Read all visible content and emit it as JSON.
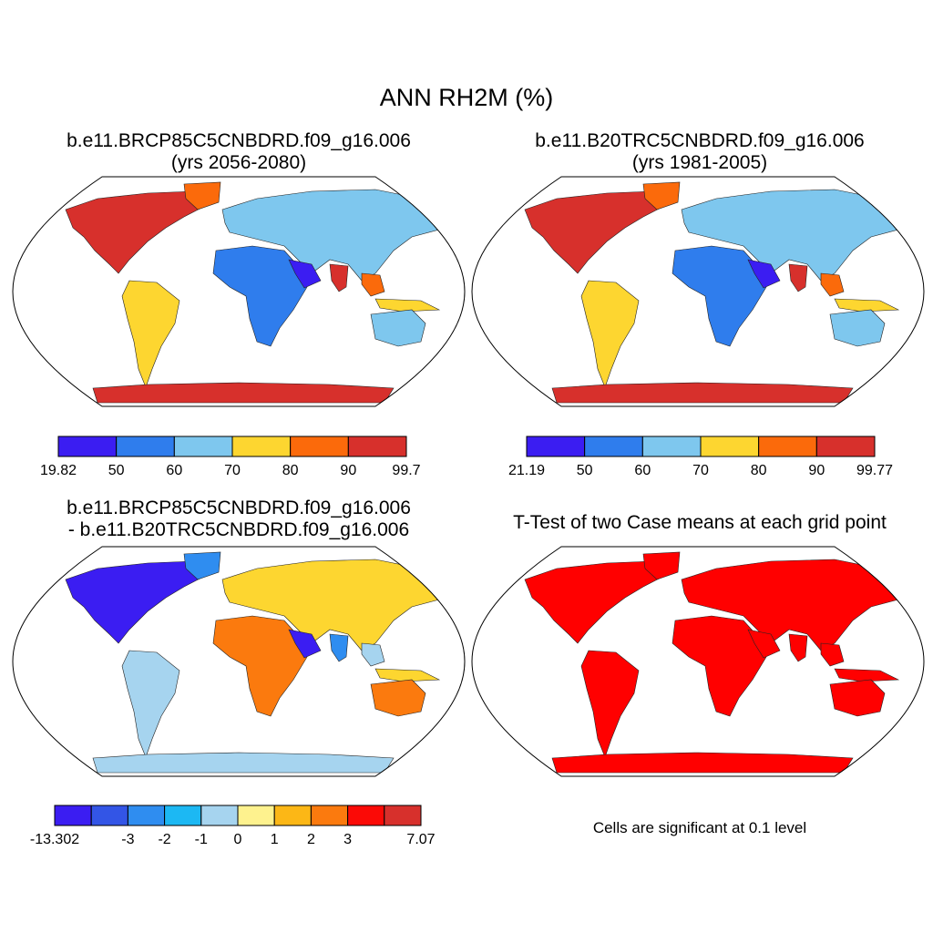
{
  "title": "ANN RH2M (%)",
  "panels": [
    {
      "id": "p1",
      "title_line1": "b.e11.BRCP85C5CNBDRD.f09_g16.006",
      "title_line2": "(yrs 2056-2080)",
      "colorbar": {
        "colors": [
          "#3b1df2",
          "#2f7ded",
          "#7ec7ee",
          "#fdd630",
          "#fb6a0b",
          "#d7302c"
        ],
        "labels": [
          "19.82",
          "50",
          "60",
          "70",
          "80",
          "90",
          "99.7"
        ]
      }
    },
    {
      "id": "p2",
      "title_line1": "b.e11.B20TRC5CNBDRD.f09_g16.006",
      "title_line2": "(yrs 1981-2005)",
      "colorbar": {
        "colors": [
          "#3b1df2",
          "#2f7ded",
          "#7ec7ee",
          "#fdd630",
          "#fb6a0b",
          "#d7302c"
        ],
        "labels": [
          "21.19",
          "50",
          "60",
          "70",
          "80",
          "90",
          "99.77"
        ]
      }
    },
    {
      "id": "p3",
      "title_line1": "b.e11.BRCP85C5CNBDRD.f09_g16.006",
      "title_line2": "- b.e11.B20TRC5CNBDRD.f09_g16.006",
      "colorbar": {
        "colors": [
          "#3b1df2",
          "#3355e6",
          "#2f8df0",
          "#1cb8f3",
          "#a6d4ef",
          "#fef28e",
          "#fcb716",
          "#fb7a0e",
          "#fb0a06",
          "#d7302c"
        ],
        "labels": [
          "-13.302",
          "",
          "-3",
          "-2",
          "-1",
          "0",
          "1",
          "2",
          "3",
          "",
          "7.07"
        ]
      }
    },
    {
      "id": "p4",
      "title": "T-Test of two Case means at each grid point",
      "note": "Cells are significant at 0.1 level",
      "sig_color": "#ff0000"
    }
  ],
  "land_palettes": {
    "p1": {
      "ocean": "#ffffff",
      "land": [
        "#d7302c",
        "#fb6a0b",
        "#fdd630",
        "#7ec7ee",
        "#2f7ded",
        "#3b1df2"
      ],
      "antarctica": "#d7302c"
    },
    "p2": {
      "ocean": "#ffffff",
      "land": [
        "#d7302c",
        "#fb6a0b",
        "#fdd630",
        "#7ec7ee",
        "#2f7ded",
        "#3b1df2"
      ],
      "antarctica": "#d7302c"
    },
    "p3": {
      "ocean": "#ffffff",
      "land": [
        "#3b1df2",
        "#2f8df0",
        "#a6d4ef",
        "#fdd630",
        "#fb7a0e"
      ],
      "antarctica": "#a6d4ef"
    },
    "p4": {
      "ocean": "#ffffff",
      "land": [
        "#ff0000"
      ],
      "antarctica": "#ff0000"
    }
  }
}
